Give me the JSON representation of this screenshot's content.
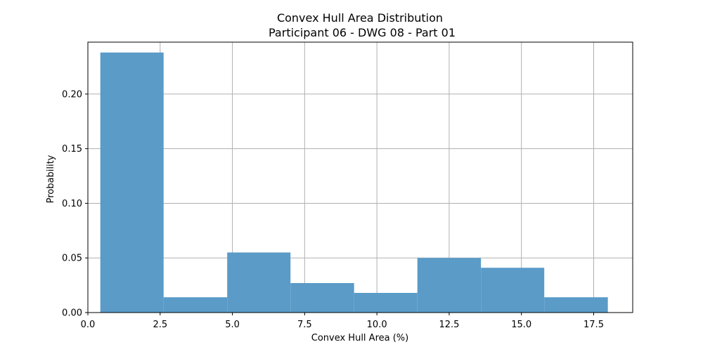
{
  "chart_data": {
    "type": "bar",
    "title": "Convex Hull Area Distribution",
    "subtitle": "Participant 06 - DWG 08 - Part 01",
    "xlabel": "Convex Hull Area (%)",
    "ylabel": "Probability",
    "xlim": [
      0,
      18.85
    ],
    "ylim": [
      0,
      0.2475
    ],
    "grid": true,
    "bar_color": "#5a9bc8",
    "grid_color": "#b0b0b0",
    "bin_edges": [
      0.43,
      2.62,
      4.82,
      7.01,
      9.21,
      11.4,
      13.6,
      15.79,
      17.99
    ],
    "values": [
      0.238,
      0.014,
      0.055,
      0.027,
      0.018,
      0.05,
      0.041,
      0.014
    ],
    "xticks": [
      {
        "value": 0.0,
        "label": "0.0"
      },
      {
        "value": 2.5,
        "label": "2.5"
      },
      {
        "value": 5.0,
        "label": "5.0"
      },
      {
        "value": 7.5,
        "label": "7.5"
      },
      {
        "value": 10.0,
        "label": "10.0"
      },
      {
        "value": 12.5,
        "label": "12.5"
      },
      {
        "value": 15.0,
        "label": "15.0"
      },
      {
        "value": 17.5,
        "label": "17.5"
      }
    ],
    "yticks": [
      {
        "value": 0.0,
        "label": "0.00"
      },
      {
        "value": 0.05,
        "label": "0.05"
      },
      {
        "value": 0.1,
        "label": "0.10"
      },
      {
        "value": 0.15,
        "label": "0.15"
      },
      {
        "value": 0.2,
        "label": "0.20"
      }
    ]
  }
}
